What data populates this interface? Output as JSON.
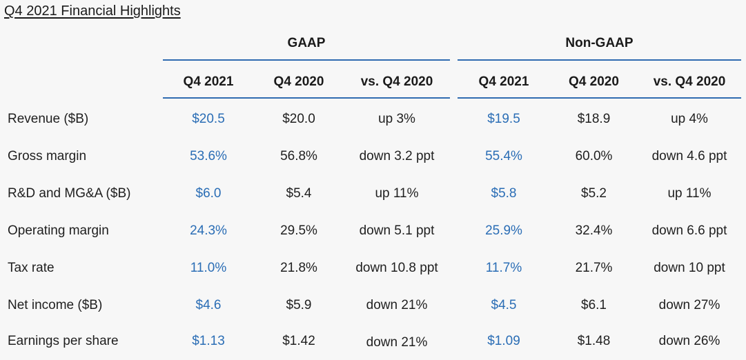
{
  "title": "Q4 2021 Financial Highlights",
  "groups": {
    "gaap": "GAAP",
    "non_gaap": "Non-GAAP"
  },
  "columns": {
    "gaap_q4_2021": "Q4 2021",
    "gaap_q4_2020": "Q4 2020",
    "gaap_vs": "vs. Q4 2020",
    "ng_q4_2021": "Q4 2021",
    "ng_q4_2020": "Q4 2020",
    "ng_vs": "vs. Q4 2020"
  },
  "colors": {
    "accent": "#2a6db5",
    "rule": "#2f6bb0",
    "background": "#f7f7f7"
  },
  "rows": [
    {
      "label": "Revenue ($B)",
      "gaap": [
        "$20.5",
        "$20.0",
        "up 3%"
      ],
      "non_gaap": [
        "$19.5",
        "$18.9",
        "up 4%"
      ]
    },
    {
      "label": "Gross margin",
      "gaap": [
        "53.6%",
        "56.8%",
        "down 3.2 ppt"
      ],
      "non_gaap": [
        "55.4%",
        "60.0%",
        "down 4.6 ppt"
      ]
    },
    {
      "label": "R&D and MG&A ($B)",
      "gaap": [
        "$6.0",
        "$5.4",
        "up 11%"
      ],
      "non_gaap": [
        "$5.8",
        "$5.2",
        "up 11%"
      ]
    },
    {
      "label": "Operating margin",
      "gaap": [
        "24.3%",
        "29.5%",
        "down 5.1 ppt"
      ],
      "non_gaap": [
        "25.9%",
        "32.4%",
        "down 6.6 ppt"
      ]
    },
    {
      "label": "Tax rate",
      "gaap": [
        "11.0%",
        "21.8%",
        "down 10.8 ppt"
      ],
      "non_gaap": [
        "11.7%",
        "21.7%",
        "down 10 ppt"
      ]
    },
    {
      "label": "Net income ($B)",
      "gaap": [
        "$4.6",
        "$5.9",
        "down 21%"
      ],
      "non_gaap": [
        "$4.5",
        "$6.1",
        "down 27%"
      ]
    },
    {
      "label": "Earnings per share",
      "gaap": [
        "$1.13",
        "$1.42",
        "down 21%"
      ],
      "non_gaap": [
        "$1.09",
        "$1.48",
        "down 26%"
      ]
    }
  ]
}
